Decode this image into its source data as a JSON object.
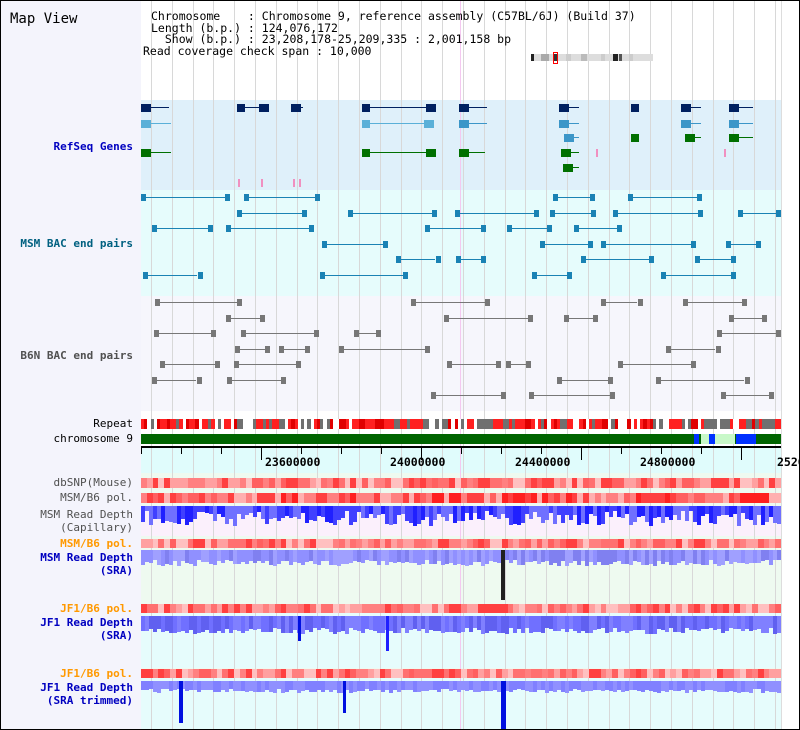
{
  "header": {
    "title": "Map View",
    "chromosome_line": "Chromosome    : Chromosome 9, reference assembly (C57BL/6J) (Build 37)",
    "length_line": "Length (b.p.) : 124,076,172",
    "show_line": "  Show (b.p.) : 23,208,178-25,209,335 : 2,001,158 bp",
    "span_line": "Read coverage check span : 10,000"
  },
  "tracks": {
    "refseq": "RefSeq Genes",
    "msm_bac": "MSM BAC end pairs",
    "b6n_bac": "B6N BAC end pairs",
    "repeat": "Repeat",
    "chromosome": "chromosome 9",
    "dbsnp": "dbSNP(Mouse)",
    "msm_pol1": "MSM/B6 pol.",
    "msm_cap_1": "MSM Read Depth",
    "msm_cap_2": "(Capillary)",
    "msm_pol2": "MSM/B6 pol.",
    "msm_sra_1": "MSM Read Depth",
    "msm_sra_2": "(SRA)",
    "jf1_pol1": "JF1/B6 pol.",
    "jf1_sra_1": "JF1 Read Depth",
    "jf1_sra_2": "(SRA)",
    "jf1_pol2": "JF1/B6 pol.",
    "jf1_trim_1": "JF1 Read Depth",
    "jf1_trim_2": "(SRA trimmed)"
  },
  "axis": {
    "ticks": [
      "23600000",
      "24000000",
      "24400000",
      "24800000",
      "2520"
    ]
  },
  "colors": {
    "refseq_bg": "#dff0fa",
    "msm_bg": "#e6fcfc",
    "gene_dark": "#002060",
    "gene_mid": "#3c96c8",
    "gene_green": "#007000",
    "chrom": "#006400",
    "label_blue": "#0000c0",
    "label_orange": "#ff9900",
    "label_gray": "#505050"
  }
}
